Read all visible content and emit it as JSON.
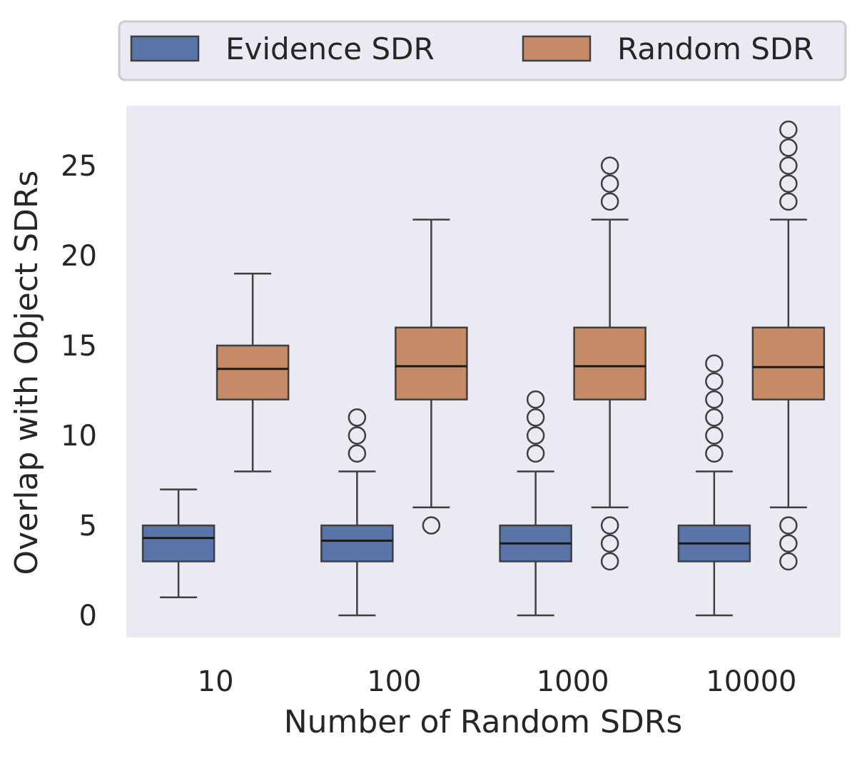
{
  "chart_data": {
    "type": "box",
    "xlabel": "Number of Random SDRs",
    "ylabel": "Overlap with Object SDRs",
    "categories": [
      "10",
      "100",
      "1000",
      "10000"
    ],
    "ylim": [
      -1.2,
      28.5
    ],
    "yticks": [
      0,
      5,
      10,
      15,
      20,
      25
    ],
    "grid": false,
    "legend_position": "top",
    "series": [
      {
        "name": "Evidence SDR",
        "color": "#5874a8",
        "boxes": [
          {
            "q1": 3,
            "median": 4.3,
            "q3": 5,
            "whislo": 1,
            "whishi": 7,
            "fliers": []
          },
          {
            "q1": 3,
            "median": 4.15,
            "q3": 5,
            "whislo": 0,
            "whishi": 8,
            "fliers": [
              9,
              10,
              11
            ]
          },
          {
            "q1": 3,
            "median": 4.0,
            "q3": 5,
            "whislo": 0,
            "whishi": 8,
            "fliers": [
              9,
              10,
              11,
              12
            ]
          },
          {
            "q1": 3,
            "median": 4.0,
            "q3": 5,
            "whislo": 0,
            "whishi": 8,
            "fliers": [
              9,
              10,
              11,
              12,
              13,
              14
            ]
          }
        ]
      },
      {
        "name": "Random SDR",
        "color": "#c58b66",
        "boxes": [
          {
            "q1": 12,
            "median": 13.7,
            "q3": 15,
            "whislo": 8,
            "whishi": 19,
            "fliers": []
          },
          {
            "q1": 12,
            "median": 13.85,
            "q3": 16,
            "whislo": 6,
            "whishi": 22,
            "fliers": [
              5
            ]
          },
          {
            "q1": 12,
            "median": 13.85,
            "q3": 16,
            "whislo": 6,
            "whishi": 22,
            "fliers": [
              3,
              4,
              5,
              23,
              24,
              25
            ]
          },
          {
            "q1": 12,
            "median": 13.8,
            "q3": 16,
            "whislo": 6,
            "whishi": 22,
            "fliers": [
              3,
              4,
              5,
              23,
              24,
              25,
              26,
              27
            ]
          }
        ]
      }
    ]
  },
  "style": {
    "plot_background": "#eaeaf2",
    "legend_background": "#eaeaf2",
    "legend_border": "#cccccc",
    "line_color": "#3f3f3f",
    "text_color": "#262626"
  }
}
